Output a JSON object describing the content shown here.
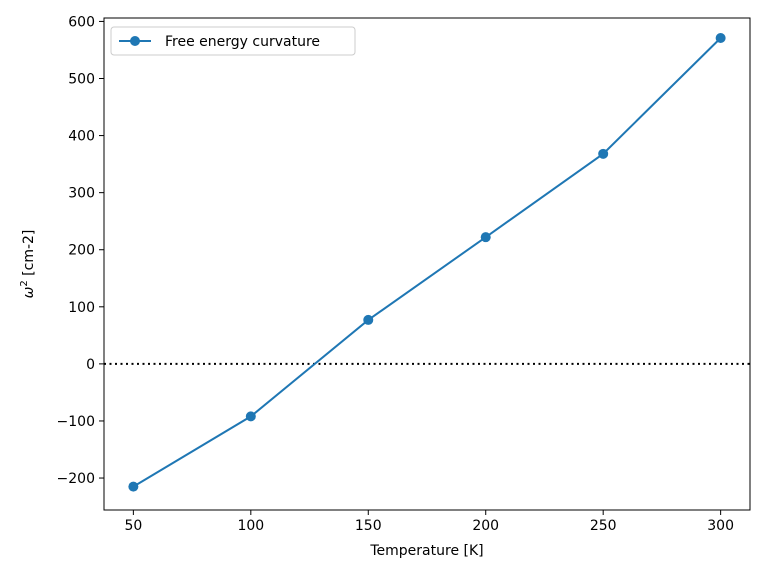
{
  "chart_data": {
    "type": "line",
    "title": "",
    "xlabel": "Temperature [K]",
    "ylabel_base": "ω",
    "ylabel_sup": "2",
    "ylabel_rest": " [cm-2]",
    "xlim": [
      37.5,
      312.5
    ],
    "ylim": [
      -256,
      606
    ],
    "xticks": [
      50,
      100,
      150,
      200,
      250,
      300
    ],
    "yticks": [
      -200,
      -100,
      0,
      100,
      200,
      300,
      400,
      500,
      600
    ],
    "ytick_labels": [
      "−200",
      "−100",
      "0",
      "100",
      "200",
      "300",
      "400",
      "500",
      "600"
    ],
    "grid": false,
    "legend_position": "top-left",
    "reference_line": {
      "y": 0,
      "style": "dotted",
      "color": "#000000"
    },
    "series": [
      {
        "name": "Free energy curvature",
        "color": "#1f77b4",
        "marker": "circle",
        "x": [
          50,
          100,
          150,
          200,
          250,
          300
        ],
        "y": [
          -215,
          -92,
          77,
          222,
          368,
          571
        ]
      }
    ]
  }
}
